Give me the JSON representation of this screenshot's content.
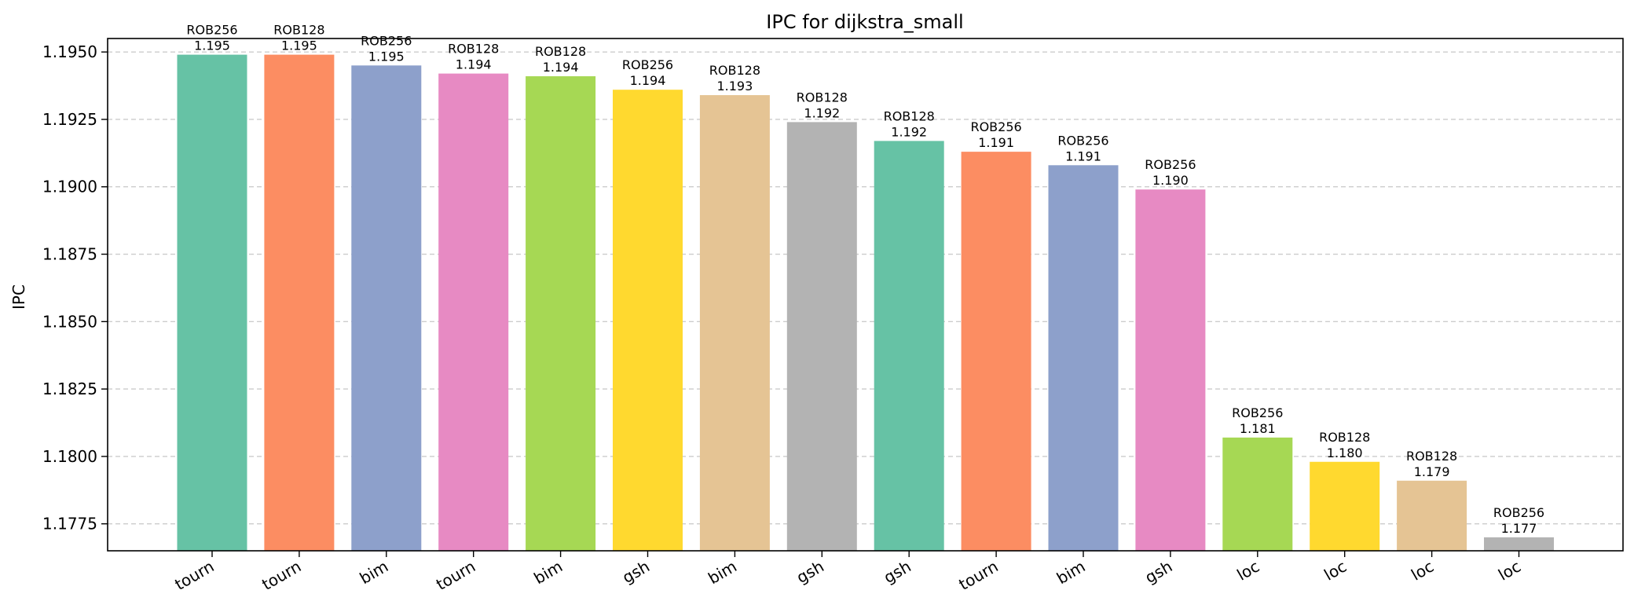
{
  "chart_data": {
    "type": "bar",
    "title": "IPC for dijkstra_small",
    "xlabel": "",
    "ylabel": "IPC",
    "ylim": [
      1.1765,
      1.1955
    ],
    "yticks": [
      1.1775,
      1.18,
      1.1825,
      1.185,
      1.1875,
      1.19,
      1.1925,
      1.195
    ],
    "ytick_labels": [
      "1.1775",
      "1.1800",
      "1.1825",
      "1.1850",
      "1.1875",
      "1.1900",
      "1.1925",
      "1.1950"
    ],
    "grid": "y-dashed",
    "bars": [
      {
        "category": "tourn",
        "config": "ROB256",
        "value": 1.1949,
        "label": "1.195",
        "color": "#66c2a5"
      },
      {
        "category": "tourn",
        "config": "ROB128",
        "value": 1.1949,
        "label": "1.195",
        "color": "#fc8d62"
      },
      {
        "category": "bim",
        "config": "ROB256",
        "value": 1.1945,
        "label": "1.195",
        "color": "#8da0cb"
      },
      {
        "category": "tourn",
        "config": "ROB128",
        "value": 1.1942,
        "label": "1.194",
        "color": "#e78ac3"
      },
      {
        "category": "bim",
        "config": "ROB128",
        "value": 1.1941,
        "label": "1.194",
        "color": "#a6d854"
      },
      {
        "category": "gsh",
        "config": "ROB256",
        "value": 1.1936,
        "label": "1.194",
        "color": "#ffd92f"
      },
      {
        "category": "bim",
        "config": "ROB128",
        "value": 1.1934,
        "label": "1.193",
        "color": "#e5c494"
      },
      {
        "category": "gsh",
        "config": "ROB128",
        "value": 1.1924,
        "label": "1.192",
        "color": "#b3b3b3"
      },
      {
        "category": "gsh",
        "config": "ROB128",
        "value": 1.1917,
        "label": "1.192",
        "color": "#66c2a5"
      },
      {
        "category": "tourn",
        "config": "ROB256",
        "value": 1.1913,
        "label": "1.191",
        "color": "#fc8d62"
      },
      {
        "category": "bim",
        "config": "ROB256",
        "value": 1.1908,
        "label": "1.191",
        "color": "#8da0cb"
      },
      {
        "category": "gsh",
        "config": "ROB256",
        "value": 1.1899,
        "label": "1.190",
        "color": "#e78ac3"
      },
      {
        "category": "loc",
        "config": "ROB256",
        "value": 1.1807,
        "label": "1.181",
        "color": "#a6d854"
      },
      {
        "category": "loc",
        "config": "ROB128",
        "value": 1.1798,
        "label": "1.180",
        "color": "#ffd92f"
      },
      {
        "category": "loc",
        "config": "ROB128",
        "value": 1.1791,
        "label": "1.179",
        "color": "#e5c494"
      },
      {
        "category": "loc",
        "config": "ROB256",
        "value": 1.177,
        "label": "1.177",
        "color": "#b3b3b3"
      }
    ]
  }
}
